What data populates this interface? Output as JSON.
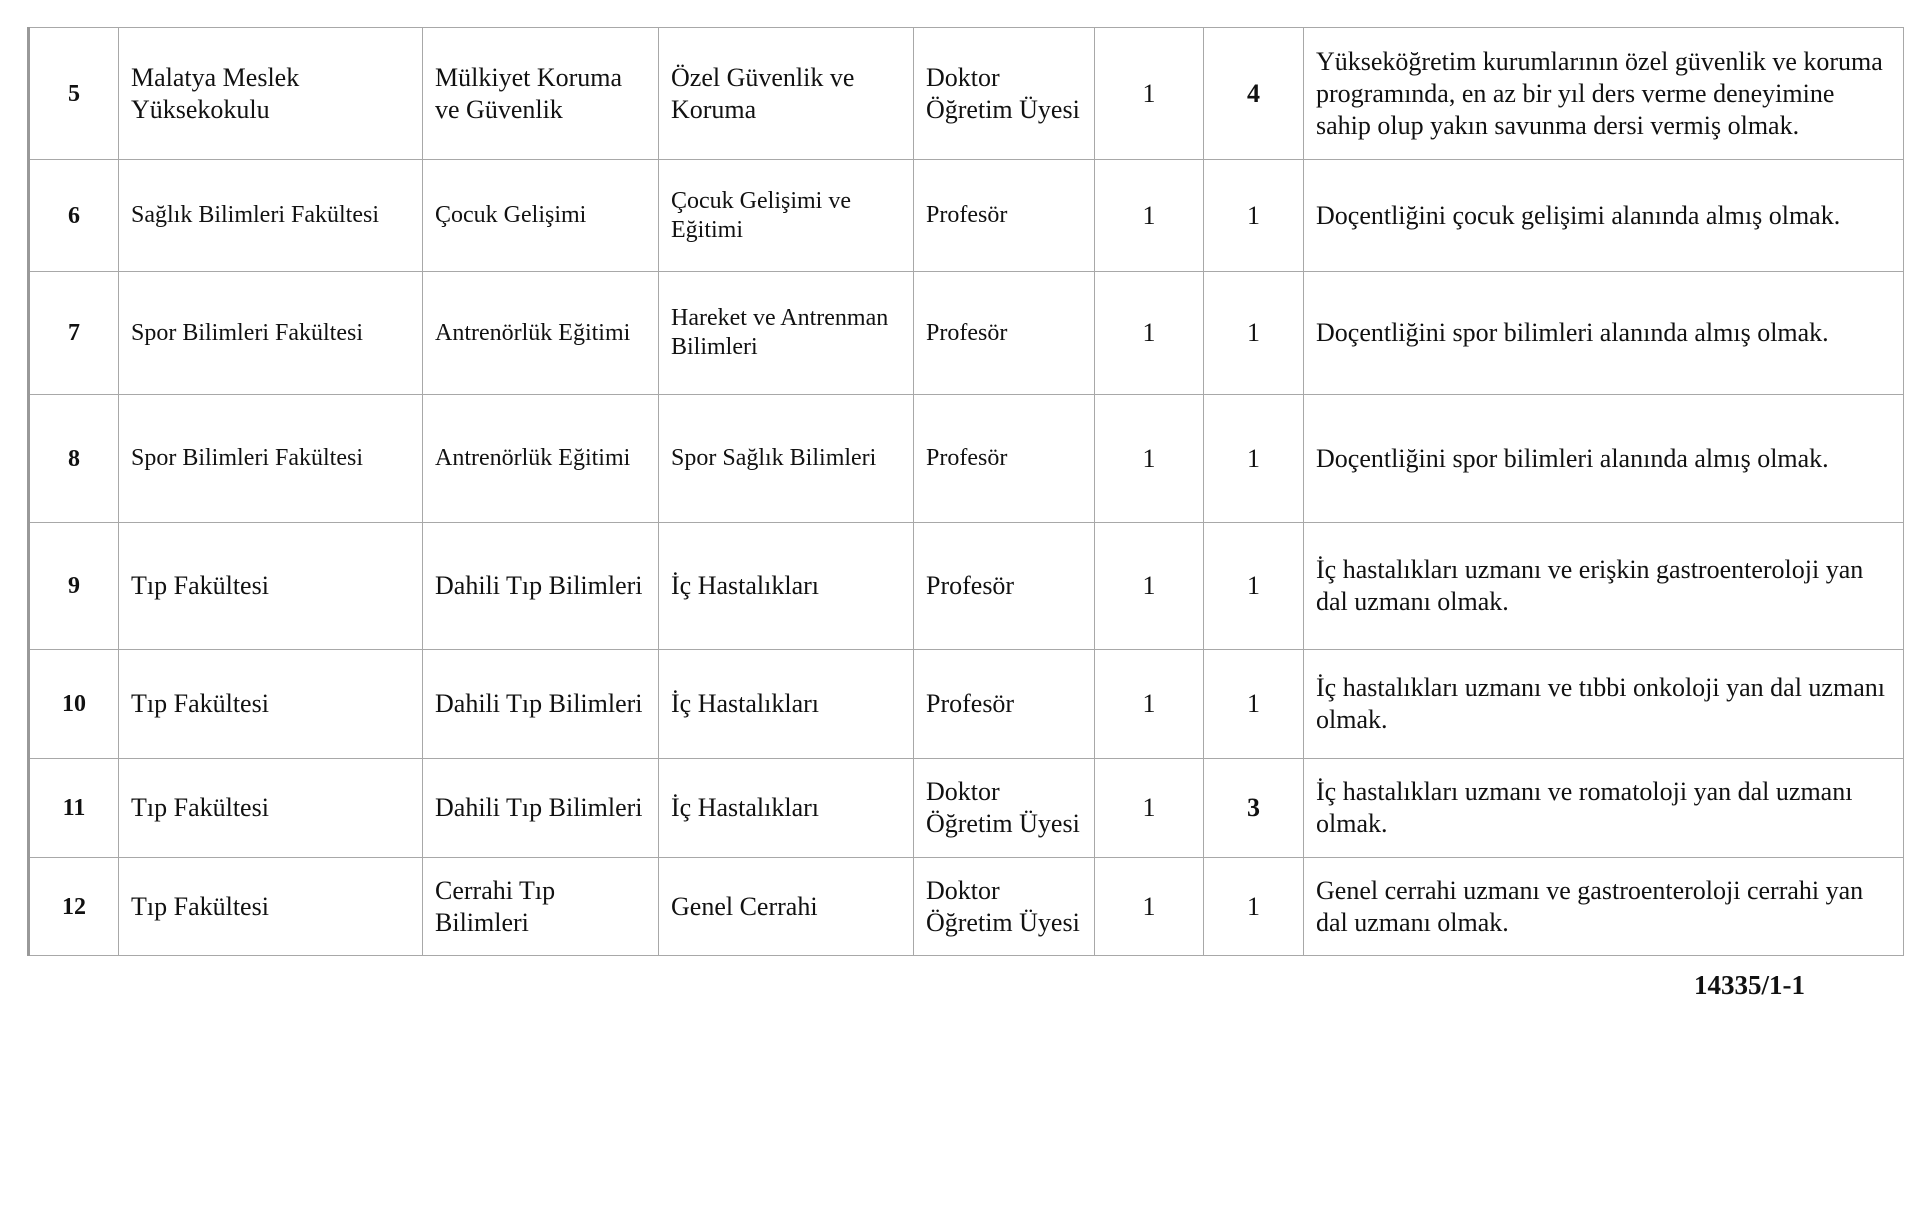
{
  "rows": [
    {
      "no": "5",
      "unit": "Malatya Meslek Yüksekokulu",
      "department": "Mülkiyet Koruma ve Güvenlik",
      "field": "Özel Güvenlik ve Koruma",
      "title": "Doktor Öğretim Üyesi",
      "degree": "1",
      "count": "4",
      "requirement": "Yükseköğretim kurumlarının özel güvenlik ve koruma programında, en az bir yıl ders verme deneyimine sahip olup yakın savunma dersi vermiş olmak."
    },
    {
      "no": "6",
      "unit": "Sağlık Bilimleri Fakültesi",
      "department": "Çocuk Gelişimi",
      "field": "Çocuk Gelişimi ve Eğitimi",
      "title": "Profesör",
      "degree": "1",
      "count": "1",
      "requirement": "Doçentliğini çocuk gelişimi alanında almış olmak."
    },
    {
      "no": "7",
      "unit": "Spor Bilimleri Fakültesi",
      "department": "Antrenörlük Eğitimi",
      "field": "Hareket ve Antrenman Bilimleri",
      "title": "Profesör",
      "degree": "1",
      "count": "1",
      "requirement": "Doçentliğini spor bilimleri alanında almış olmak."
    },
    {
      "no": "8",
      "unit": "Spor Bilimleri Fakültesi",
      "department": "Antrenörlük Eğitimi",
      "field": "Spor Sağlık Bilimleri",
      "title": "Profesör",
      "degree": "1",
      "count": "1",
      "requirement": "Doçentliğini spor bilimleri alanında almış olmak."
    },
    {
      "no": "9",
      "unit": "Tıp Fakültesi",
      "department": "Dahili Tıp Bilimleri",
      "field": "İç Hastalıkları",
      "title": "Profesör",
      "degree": "1",
      "count": "1",
      "requirement": "İç hastalıkları uzmanı ve erişkin gastroenteroloji yan dal uzmanı olmak."
    },
    {
      "no": "10",
      "unit": "Tıp Fakültesi",
      "department": "Dahili Tıp Bilimleri",
      "field": "İç Hastalıkları",
      "title": "Profesör",
      "degree": "1",
      "count": "1",
      "requirement": "İç hastalıkları uzmanı ve tıbbi onkoloji yan dal uzmanı olmak."
    },
    {
      "no": "11",
      "unit": "Tıp Fakültesi",
      "department": "Dahili Tıp Bilimleri",
      "field": "İç Hastalıkları",
      "title": "Doktor Öğretim Üyesi",
      "degree": "1",
      "count": "3",
      "requirement": "İç hastalıkları uzmanı ve romatoloji yan dal uzmanı olmak."
    },
    {
      "no": "12",
      "unit": "Tıp Fakültesi",
      "department": "Cerrahi Tıp Bilimleri",
      "field": "Genel Cerrahi",
      "title": "Doktor Öğretim Üyesi",
      "degree": "1",
      "count": "1",
      "requirement": "Genel cerrahi uzmanı ve gastroenteroloji cerrahi yan dal uzmanı olmak."
    }
  ],
  "footer": "14335/1-1"
}
